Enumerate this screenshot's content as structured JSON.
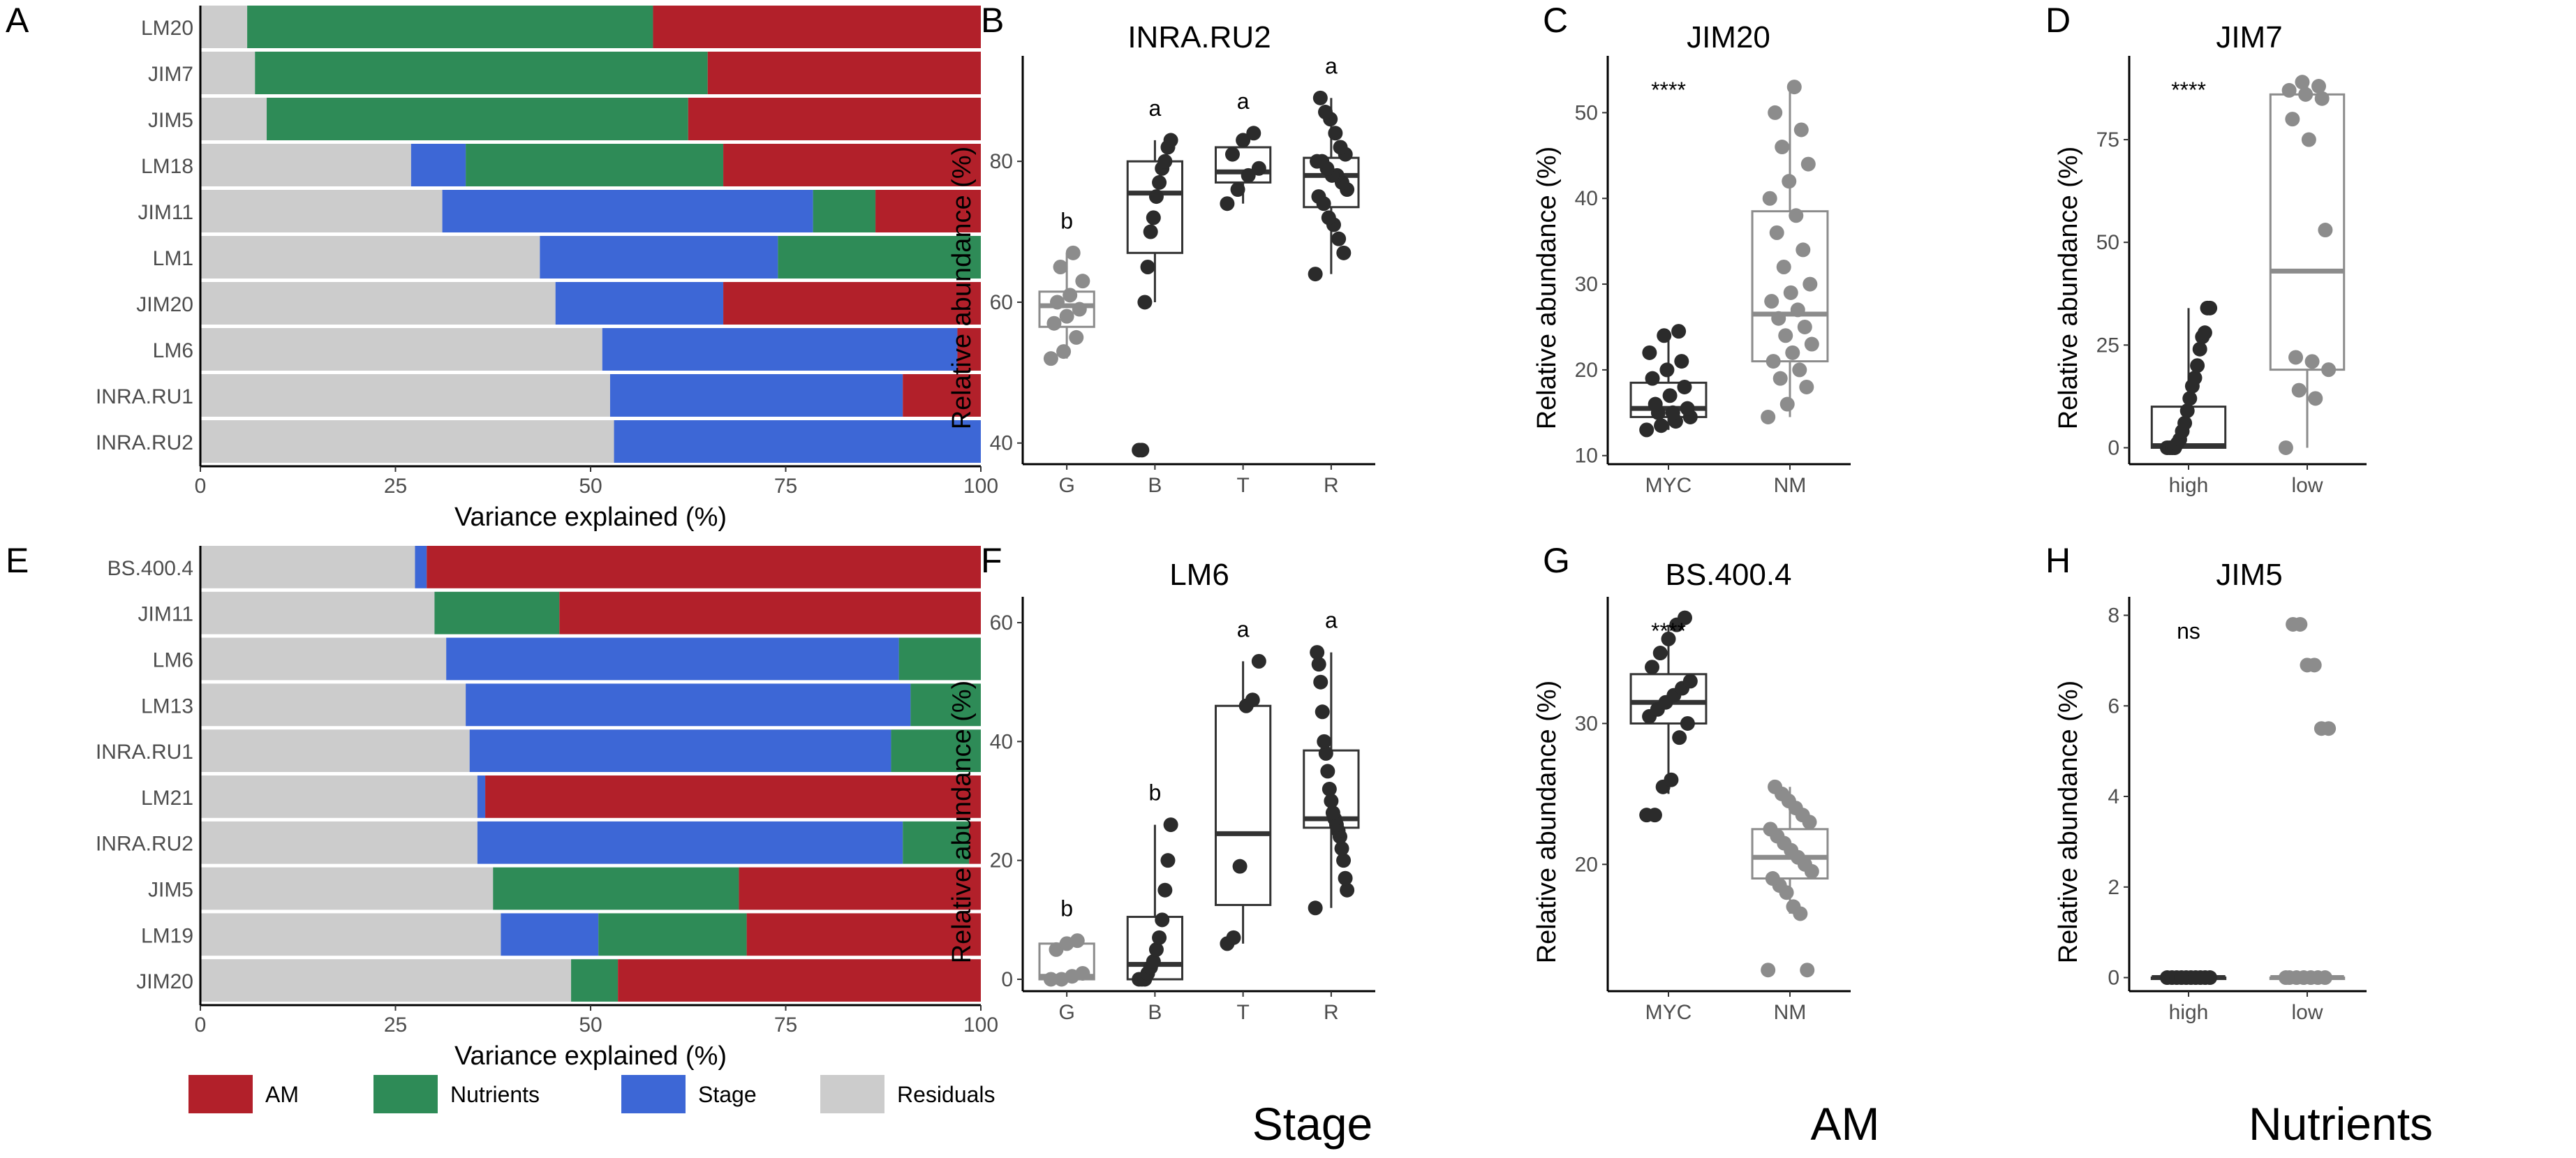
{
  "colors": {
    "AM": "#b2202a",
    "Nutrients": "#2e8b57",
    "Stage": "#3d67d6",
    "Residuals": "#cccccc",
    "light_point": "#8c8c8c",
    "dark_point": "#2b2b2b",
    "box_light": "#8c8c8c",
    "box_dark": "#333333"
  },
  "legend": {
    "items": [
      {
        "key": "AM",
        "label": "AM"
      },
      {
        "key": "Nutrients",
        "label": "Nutrients"
      },
      {
        "key": "Stage",
        "label": "Stage"
      },
      {
        "key": "Residuals",
        "label": "Residuals"
      }
    ]
  },
  "bottom_labels": {
    "stage": "Stage",
    "am": "AM",
    "nutrients": "Nutrients"
  },
  "chart_data": [
    {
      "panel": "A",
      "type": "bar",
      "orientation": "horizontal-stacked",
      "xlabel": "Variance explained (%)",
      "xlim": [
        0,
        100
      ],
      "xticks": [
        "0",
        "25",
        "50",
        "75",
        "100"
      ],
      "stack_order": [
        "Residuals",
        "Stage",
        "Nutrients",
        "AM"
      ],
      "categories": [
        "LM20",
        "JIM7",
        "JIM5",
        "LM18",
        "JIM11",
        "LM1",
        "JIM20",
        "LM6",
        "INRA.RU1",
        "INRA.RU2"
      ],
      "series": [
        {
          "name": "Residuals",
          "values": [
            6,
            7,
            8.5,
            27,
            31,
            43.5,
            45.5,
            51.5,
            52.5,
            53
          ]
        },
        {
          "name": "Stage",
          "values": [
            0,
            0,
            0,
            7,
            47.5,
            30.5,
            21.5,
            45.5,
            37.5,
            47
          ]
        },
        {
          "name": "Nutrients",
          "values": [
            52,
            58,
            54,
            33,
            8,
            26,
            0,
            0,
            0,
            0
          ]
        },
        {
          "name": "AM",
          "values": [
            42,
            35,
            37.5,
            33,
            13.5,
            0,
            33,
            3,
            10,
            0
          ]
        }
      ]
    },
    {
      "panel": "E",
      "type": "bar",
      "orientation": "horizontal-stacked",
      "xlabel": "Variance explained (%)",
      "xlim": [
        0,
        100
      ],
      "xticks": [
        "0",
        "25",
        "50",
        "75",
        "100"
      ],
      "stack_order": [
        "Residuals",
        "Stage",
        "Nutrients",
        "AM"
      ],
      "categories": [
        "BS.400.4",
        "JIM11",
        "LM6",
        "LM13",
        "INRA.RU1",
        "LM21",
        "INRA.RU2",
        "JIM5",
        "LM19",
        "JIM20"
      ],
      "series": [
        {
          "name": "Residuals",
          "values": [
            27.5,
            30,
            31.5,
            34,
            34.5,
            35.5,
            35.5,
            37.5,
            38.5,
            47.5
          ]
        },
        {
          "name": "Stage",
          "values": [
            1.5,
            0,
            58,
            57,
            54,
            1,
            54.5,
            0,
            12.5,
            0
          ]
        },
        {
          "name": "Nutrients",
          "values": [
            0,
            16,
            10.5,
            9,
            11.5,
            0,
            8.5,
            31.5,
            19,
            6
          ]
        },
        {
          "name": "AM",
          "values": [
            71,
            54,
            0,
            0,
            0,
            63.5,
            1.5,
            31,
            30,
            46.5
          ]
        }
      ]
    },
    {
      "panel": "B",
      "type": "box",
      "title": "INRA.RU2",
      "ylabel": "Relative abundance (%)",
      "ylim": [
        37,
        93
      ],
      "yticks": [
        40,
        60,
        80
      ],
      "categories": [
        "G",
        "B",
        "T",
        "R"
      ],
      "boxes": [
        {
          "q1": 56.5,
          "median": 59.5,
          "q3": 61.5,
          "lo": 52,
          "hi": 67,
          "shade": "light",
          "letter": "b",
          "points": [
            52,
            53,
            55,
            57,
            58,
            59,
            60,
            61,
            63,
            65,
            67
          ]
        },
        {
          "q1": 67,
          "median": 75.5,
          "q3": 80,
          "lo": 60,
          "hi": 83,
          "shade": "dark",
          "letter": "a",
          "points": [
            39,
            39,
            60,
            65,
            70,
            72,
            75,
            77,
            79,
            80,
            82,
            83
          ]
        },
        {
          "q1": 77,
          "median": 78.5,
          "q3": 82,
          "lo": 74,
          "hi": 84,
          "shade": "dark",
          "letter": "a",
          "points": [
            74,
            76,
            78,
            79,
            81,
            83,
            84
          ]
        },
        {
          "q1": 73.5,
          "median": 78,
          "q3": 80.5,
          "lo": 64,
          "hi": 89,
          "shade": "dark",
          "letter": "a",
          "points": [
            64,
            67,
            69,
            71,
            72,
            74,
            75,
            76,
            77,
            78,
            78,
            79,
            80,
            80,
            81,
            82,
            84,
            86,
            87,
            89
          ]
        }
      ]
    },
    {
      "panel": "C",
      "type": "box",
      "title": "JIM20",
      "ylabel": "Relative abundance (%)",
      "ylim": [
        9,
        55
      ],
      "yticks": [
        10,
        20,
        30,
        40,
        50
      ],
      "categories": [
        "MYC",
        "NM"
      ],
      "annotation": "****",
      "boxes": [
        {
          "q1": 14.5,
          "median": 15.5,
          "q3": 18.5,
          "lo": 13,
          "hi": 24.5,
          "shade": "dark",
          "points": [
            13,
            13.5,
            14,
            14.5,
            15,
            15,
            15.5,
            16,
            17,
            18,
            19,
            20,
            21,
            22,
            24,
            24.5
          ]
        },
        {
          "q1": 21,
          "median": 26.5,
          "q3": 38.5,
          "lo": 14.5,
          "hi": 53,
          "shade": "light",
          "points": [
            14.5,
            16,
            18,
            19,
            20,
            21,
            22,
            23,
            24,
            25,
            26,
            27,
            28,
            29,
            30,
            32,
            34,
            36,
            38,
            40,
            42,
            44,
            46,
            48,
            50,
            53
          ]
        }
      ]
    },
    {
      "panel": "D",
      "type": "box",
      "title": "JIM7",
      "ylabel": "Relative abundance (%)",
      "ylim": [
        -4,
        92
      ],
      "yticks": [
        0,
        25,
        50,
        75
      ],
      "categories": [
        "high",
        "low"
      ],
      "annotation": "****",
      "boxes": [
        {
          "q1": 0,
          "median": 0.5,
          "q3": 10,
          "lo": 0,
          "hi": 34,
          "shade": "dark",
          "points": [
            0,
            0,
            0,
            0,
            1,
            2,
            4,
            6,
            9,
            12,
            15,
            17,
            20,
            24,
            27,
            28,
            34,
            34
          ]
        },
        {
          "q1": 19,
          "median": 43,
          "q3": 86,
          "lo": 0,
          "hi": 89,
          "shade": "light",
          "points": [
            0,
            12,
            14,
            19,
            21,
            22,
            53,
            75,
            80,
            85,
            86,
            87,
            88,
            89
          ]
        }
      ]
    },
    {
      "panel": "F",
      "type": "box",
      "title": "LM6",
      "ylabel": "Relative abundance (%)",
      "ylim": [
        -2,
        62
      ],
      "yticks": [
        0,
        20,
        40,
        60
      ],
      "categories": [
        "G",
        "B",
        "T",
        "R"
      ],
      "boxes": [
        {
          "q1": 0,
          "median": 0.5,
          "q3": 6,
          "lo": 0,
          "hi": 6.5,
          "shade": "light",
          "letter": "b",
          "points": [
            0,
            0,
            0.5,
            1,
            5,
            6,
            6.5
          ]
        },
        {
          "q1": 0,
          "median": 2.5,
          "q3": 10.5,
          "lo": 0,
          "hi": 26,
          "shade": "dark",
          "letter": "b",
          "points": [
            0,
            0,
            0,
            1,
            2,
            3,
            5,
            7,
            10,
            15,
            20,
            26
          ]
        },
        {
          "q1": 12.5,
          "median": 24.5,
          "q3": 46,
          "lo": 6,
          "hi": 53.5,
          "shade": "dark",
          "letter": "a",
          "points": [
            6,
            7,
            19,
            46,
            47,
            53.5
          ]
        },
        {
          "q1": 25.5,
          "median": 27,
          "q3": 38.5,
          "lo": 12,
          "hi": 55,
          "shade": "dark",
          "letter": "a",
          "points": [
            12,
            15,
            17,
            20,
            22,
            24,
            25,
            26,
            27,
            28,
            30,
            32,
            35,
            38,
            40,
            45,
            50,
            53,
            55
          ]
        }
      ]
    },
    {
      "panel": "G",
      "type": "box",
      "title": "BS.400.4",
      "ylabel": "Relative abundance (%)",
      "ylim": [
        11,
        38
      ],
      "yticks": [
        20,
        30
      ],
      "categories": [
        "MYC",
        "NM"
      ],
      "annotation": "****",
      "boxes": [
        {
          "q1": 30,
          "median": 31.5,
          "q3": 33.5,
          "lo": 25,
          "hi": 37,
          "shade": "dark",
          "points": [
            23.5,
            23.5,
            25.5,
            26,
            29,
            30,
            30.5,
            31,
            31.5,
            32,
            32.5,
            33,
            34,
            35,
            36,
            37,
            37.5
          ]
        },
        {
          "q1": 19,
          "median": 20.5,
          "q3": 22.5,
          "lo": 16.5,
          "hi": 25.5,
          "shade": "light",
          "points": [
            12.5,
            12.5,
            16.5,
            17,
            18,
            18.5,
            19,
            19.5,
            20,
            20.5,
            21,
            21.5,
            22,
            22.5,
            23,
            23.5,
            24,
            24.5,
            25,
            25.5
          ]
        }
      ]
    },
    {
      "panel": "H",
      "type": "box",
      "title": "JIM5",
      "ylabel": "Relative abundance (%)",
      "ylim": [
        -0.3,
        8.1
      ],
      "yticks": [
        0,
        2,
        4,
        6,
        8
      ],
      "categories": [
        "high",
        "low"
      ],
      "annotation": "ns",
      "boxes": [
        {
          "q1": 0,
          "median": 0,
          "q3": 0,
          "lo": 0,
          "hi": 0,
          "shade": "dark",
          "points": [
            0,
            0,
            0,
            0,
            0,
            0,
            0,
            0,
            0,
            0
          ]
        },
        {
          "q1": 0,
          "median": 0,
          "q3": 0,
          "lo": 0,
          "hi": 0,
          "shade": "light",
          "points": [
            0,
            0,
            0,
            0,
            0,
            0,
            0,
            5.5,
            5.5,
            6.9,
            6.9,
            7.8,
            7.8
          ]
        }
      ]
    }
  ]
}
